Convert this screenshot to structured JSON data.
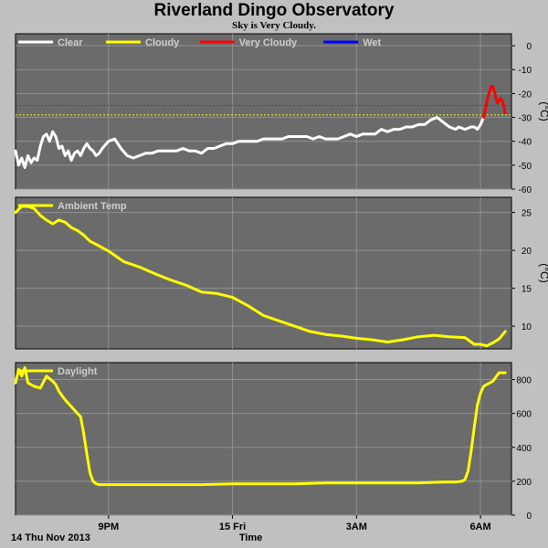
{
  "page": {
    "title": "Riverland Dingo Observatory",
    "subtitle": "Sky is Very Cloudy."
  },
  "colors": {
    "background": "#c0c0c0",
    "plot": "#6b6b6b",
    "grid": "#909090",
    "clear": "#ffffff",
    "cloudy": "#ffff00",
    "very_cloudy": "#ff0000",
    "wet": "#0000ff"
  },
  "chart_data": [
    {
      "type": "line",
      "name": "sky",
      "unit_label": "(°C)",
      "ylim": [
        -60,
        5
      ],
      "yticks": [
        0,
        -10,
        -20,
        -30,
        -40,
        -50,
        -60
      ],
      "grid": true,
      "legend_position": "top-left",
      "legend": [
        {
          "label": "Clear",
          "color": "#ffffff"
        },
        {
          "label": "Cloudy",
          "color": "#ffff00"
        },
        {
          "label": "Very Cloudy",
          "color": "#ff0000"
        },
        {
          "label": "Wet",
          "color": "#0000ff"
        }
      ],
      "thresholds": [
        {
          "value": -25,
          "color": "#ff0000"
        },
        {
          "value": -29,
          "color": "#ffff00"
        }
      ],
      "series": [
        {
          "name": "Clear",
          "color": "#ffffff",
          "x": [
            0,
            0.1,
            0.2,
            0.3,
            0.4,
            0.5,
            0.6,
            0.7,
            0.8,
            0.9,
            1.0,
            1.1,
            1.2,
            1.3,
            1.4,
            1.5,
            1.6,
            1.7,
            1.8,
            1.9,
            2.0,
            2.1,
            2.2,
            2.3,
            2.4,
            2.5,
            2.6,
            2.7,
            2.8,
            3.0,
            3.2,
            3.4,
            3.6,
            3.8,
            4.0,
            4.2,
            4.4,
            4.6,
            4.8,
            5.0,
            5.2,
            5.4,
            5.6,
            5.8,
            6.0,
            6.2,
            6.4,
            6.6,
            6.8,
            7.0,
            7.2,
            7.4,
            7.6,
            7.8,
            8.0,
            8.2,
            8.4,
            8.6,
            8.8,
            9.0,
            9.2,
            9.4,
            9.6,
            9.8,
            10.0,
            10.2,
            10.4,
            10.6,
            10.8,
            11.0,
            11.2,
            11.4,
            11.6,
            11.8,
            12.0,
            12.2,
            12.4,
            12.6,
            12.8,
            13.0,
            13.2,
            13.4,
            13.6,
            13.8,
            14.0,
            14.2,
            14.3,
            14.5,
            14.7,
            14.8,
            14.9,
            15.0,
            15.1
          ],
          "y": [
            -44,
            -50,
            -47,
            -51,
            -46,
            -49,
            -47,
            -48,
            -42,
            -38,
            -37,
            -40,
            -36,
            -38,
            -43,
            -42,
            -46,
            -44,
            -48,
            -45,
            -44,
            -46,
            -43,
            -41,
            -43,
            -44,
            -46,
            -45,
            -43,
            -40,
            -39,
            -43,
            -46,
            -47,
            -46,
            -45,
            -45,
            -44,
            -44,
            -44,
            -44,
            -43,
            -44,
            -44,
            -45,
            -43,
            -43,
            -42,
            -41,
            -41,
            -40,
            -40,
            -40,
            -40,
            -39,
            -39,
            -39,
            -39,
            -38,
            -38,
            -38,
            -38,
            -39,
            -38,
            -39,
            -39,
            -39,
            -38,
            -37,
            -38,
            -37,
            -37,
            -37,
            -35,
            -36,
            -35,
            -35,
            -34,
            -34,
            -33,
            -33,
            -31,
            -30,
            -32,
            -34,
            -35,
            -34,
            -35,
            -34,
            -34,
            -35,
            -33,
            -30
          ]
        },
        {
          "name": "Very Cloudy",
          "color": "#ff0000",
          "x": [
            15.1,
            15.15,
            15.2,
            15.25,
            15.3,
            15.35,
            15.4,
            15.45,
            15.5,
            15.55,
            15.6,
            15.65,
            15.7,
            15.75,
            15.8
          ],
          "y": [
            -30,
            -27,
            -24,
            -21,
            -19,
            -17,
            -17,
            -19,
            -22,
            -24,
            -23,
            -22,
            -23,
            -25,
            -28
          ]
        }
      ]
    },
    {
      "type": "line",
      "name": "ambient",
      "unit_label": "(°C)",
      "ylim": [
        7,
        27
      ],
      "yticks": [
        25,
        20,
        15,
        10
      ],
      "grid": true,
      "legend_position": "top-left",
      "legend": [
        {
          "label": "Ambient Temp",
          "color": "#ffff00"
        }
      ],
      "series": [
        {
          "name": "Ambient Temp",
          "color": "#ffff00",
          "x": [
            0,
            0.2,
            0.4,
            0.6,
            0.8,
            1.0,
            1.2,
            1.4,
            1.6,
            1.8,
            2.0,
            2.2,
            2.4,
            2.6,
            3.0,
            3.5,
            4.0,
            4.5,
            5.0,
            5.5,
            6.0,
            6.5,
            7.0,
            7.5,
            8.0,
            8.5,
            9.0,
            9.5,
            10.0,
            10.5,
            11.0,
            11.5,
            12.0,
            12.5,
            13.0,
            13.5,
            14.0,
            14.5,
            14.8,
            15.0,
            15.2,
            15.4,
            15.6,
            15.8
          ],
          "y": [
            25.0,
            25.8,
            25.8,
            25.5,
            24.6,
            24.0,
            23.5,
            24.0,
            23.7,
            23.0,
            22.6,
            22.0,
            21.2,
            20.8,
            19.9,
            18.5,
            17.8,
            16.9,
            16.1,
            15.4,
            14.5,
            14.3,
            13.8,
            12.7,
            11.4,
            10.7,
            10.0,
            9.3,
            8.9,
            8.7,
            8.4,
            8.2,
            7.9,
            8.2,
            8.6,
            8.8,
            8.6,
            8.5,
            7.6,
            7.6,
            7.4,
            7.8,
            8.3,
            9.3
          ]
        }
      ]
    },
    {
      "type": "line",
      "name": "daylight",
      "unit_label": "",
      "ylim": [
        0,
        900
      ],
      "yticks": [
        800,
        600,
        400,
        200,
        0
      ],
      "grid": true,
      "legend_position": "top-left",
      "legend": [
        {
          "label": "Daylight",
          "color": "#ffff00"
        }
      ],
      "series": [
        {
          "name": "Daylight",
          "color": "#ffff00",
          "x": [
            0,
            0.1,
            0.2,
            0.3,
            0.4,
            0.5,
            0.6,
            0.8,
            1.0,
            1.2,
            1.3,
            1.4,
            1.6,
            1.8,
            2.0,
            2.1,
            2.2,
            2.3,
            2.4,
            2.5,
            2.6,
            2.7,
            2.8,
            3.0,
            3.5,
            4.0,
            5.0,
            6.0,
            7.0,
            8.0,
            9.0,
            10.0,
            11.0,
            12.0,
            13.0,
            13.8,
            14.2,
            14.4,
            14.5,
            14.6,
            14.7,
            14.8,
            14.9,
            15.0,
            15.1,
            15.2,
            15.4,
            15.6,
            15.8
          ],
          "y": [
            780,
            860,
            820,
            870,
            780,
            770,
            760,
            750,
            820,
            790,
            770,
            730,
            680,
            640,
            600,
            580,
            480,
            360,
            250,
            200,
            185,
            180,
            180,
            180,
            180,
            180,
            180,
            180,
            185,
            185,
            185,
            190,
            190,
            190,
            190,
            195,
            195,
            200,
            210,
            260,
            380,
            520,
            650,
            720,
            760,
            770,
            790,
            840,
            840
          ]
        }
      ]
    }
  ],
  "x_axis": {
    "label": "Time",
    "start_label": "14 Thu Nov 2013",
    "xlim": [
      0,
      16
    ],
    "ticks": [
      {
        "x": 3.0,
        "label": "9PM"
      },
      {
        "x": 7.0,
        "label": "15 Fri"
      },
      {
        "x": 11.0,
        "label": "3AM"
      },
      {
        "x": 15.0,
        "label": "6AM"
      }
    ]
  }
}
